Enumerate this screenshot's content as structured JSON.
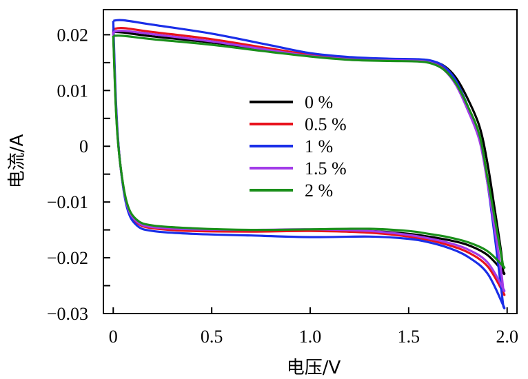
{
  "chart_data": {
    "type": "line",
    "title": "",
    "xlabel": "电压/V",
    "ylabel": "电流/A",
    "xlim": [
      -0.05,
      2.05
    ],
    "ylim": [
      -0.03,
      0.0245
    ],
    "x_ticks": [
      0,
      0.5,
      1.0,
      1.5,
      2.0
    ],
    "x_tick_labels": [
      "0",
      "0.5",
      "1.0",
      "1.5",
      "2.0"
    ],
    "y_ticks": [
      0.02,
      0.01,
      0,
      -0.01,
      -0.02,
      -0.03
    ],
    "y_tick_labels": [
      "0.02",
      "0.01",
      "0",
      "−0.01",
      "−0.02",
      "−0.03"
    ],
    "y_minor_ticks": [
      0.015,
      0.005,
      -0.005,
      -0.015,
      -0.025
    ],
    "grid": false,
    "legend_position": "center",
    "series": [
      {
        "name": "0 %",
        "color": "#000000",
        "upper": {
          "x": [
            0,
            0.05,
            0.2,
            0.5,
            0.8,
            1.0,
            1.2,
            1.4,
            1.55,
            1.62,
            1.68,
            1.74,
            1.8,
            1.86,
            1.9,
            1.94,
            1.97,
            1.98
          ],
          "y": [
            0.0205,
            0.0204,
            0.0197,
            0.0186,
            0.0172,
            0.0163,
            0.0157,
            0.0155,
            0.0155,
            0.0152,
            0.0144,
            0.0123,
            0.0085,
            0.0035,
            -0.003,
            -0.012,
            -0.019,
            -0.0225
          ]
        },
        "lower": {
          "x": [
            1.98,
            1.9,
            1.8,
            1.7,
            1.6,
            1.5,
            1.3,
            1.0,
            0.7,
            0.4,
            0.2,
            0.12,
            0.07,
            0.035,
            0.015,
            0
          ],
          "y": [
            -0.0225,
            -0.0195,
            -0.0177,
            -0.0168,
            -0.0162,
            -0.0157,
            -0.0152,
            -0.0151,
            -0.0151,
            -0.0149,
            -0.0145,
            -0.0135,
            -0.0105,
            -0.003,
            0.006,
            0.0205
          ]
        }
      },
      {
        "name": "0.5 %",
        "color": "#e8121c",
        "upper": {
          "x": [
            0,
            0.05,
            0.2,
            0.5,
            0.8,
            1.0,
            1.2,
            1.4,
            1.55,
            1.62,
            1.68,
            1.74,
            1.8,
            1.86,
            1.9,
            1.94,
            1.97,
            1.98
          ],
          "y": [
            0.021,
            0.0212,
            0.0205,
            0.0192,
            0.0175,
            0.0164,
            0.0158,
            0.0156,
            0.0155,
            0.0152,
            0.0141,
            0.0115,
            0.007,
            0.0015,
            -0.006,
            -0.0155,
            -0.0235,
            -0.0262
          ]
        },
        "lower": {
          "x": [
            1.98,
            1.9,
            1.8,
            1.7,
            1.6,
            1.5,
            1.3,
            1.0,
            0.7,
            0.4,
            0.2,
            0.12,
            0.07,
            0.035,
            0.015,
            0
          ],
          "y": [
            -0.0262,
            -0.0215,
            -0.019,
            -0.0177,
            -0.0168,
            -0.0162,
            -0.0155,
            -0.0152,
            -0.0153,
            -0.0152,
            -0.0147,
            -0.0137,
            -0.0107,
            -0.003,
            0.0065,
            0.021
          ]
        }
      },
      {
        "name": "1 %",
        "color": "#1a2ee8",
        "upper": {
          "x": [
            0,
            0.05,
            0.2,
            0.5,
            0.8,
            1.0,
            1.2,
            1.4,
            1.55,
            1.62,
            1.68,
            1.74,
            1.8,
            1.86,
            1.9,
            1.94,
            1.97,
            1.98
          ],
          "y": [
            0.0225,
            0.0226,
            0.0218,
            0.0202,
            0.0181,
            0.0167,
            0.016,
            0.0157,
            0.0156,
            0.0153,
            0.0143,
            0.0118,
            0.0072,
            0.0015,
            -0.0065,
            -0.017,
            -0.0255,
            -0.0285
          ]
        },
        "lower": {
          "x": [
            1.98,
            1.9,
            1.8,
            1.7,
            1.6,
            1.5,
            1.3,
            1.0,
            0.7,
            0.4,
            0.2,
            0.12,
            0.07,
            0.035,
            0.015,
            0
          ],
          "y": [
            -0.0285,
            -0.0228,
            -0.0198,
            -0.0182,
            -0.0172,
            -0.0166,
            -0.0162,
            -0.0163,
            -0.016,
            -0.0157,
            -0.0152,
            -0.0142,
            -0.011,
            -0.003,
            0.007,
            0.0225
          ]
        }
      },
      {
        "name": "1.5 %",
        "color": "#a23be8",
        "upper": {
          "x": [
            0,
            0.05,
            0.2,
            0.5,
            0.8,
            1.0,
            1.2,
            1.4,
            1.55,
            1.62,
            1.68,
            1.74,
            1.8,
            1.86,
            1.9,
            1.94,
            1.97,
            1.98
          ],
          "y": [
            0.0205,
            0.0207,
            0.0201,
            0.0188,
            0.0172,
            0.0162,
            0.0156,
            0.0154,
            0.0153,
            0.0149,
            0.0137,
            0.011,
            0.0065,
            0.001,
            -0.0065,
            -0.0155,
            -0.0225,
            -0.0255
          ]
        },
        "lower": {
          "x": [
            1.98,
            1.9,
            1.8,
            1.7,
            1.6,
            1.5,
            1.3,
            1.0,
            0.7,
            0.4,
            0.2,
            0.12,
            0.07,
            0.035,
            0.015,
            0
          ],
          "y": [
            -0.0255,
            -0.0208,
            -0.0185,
            -0.0173,
            -0.0165,
            -0.0159,
            -0.0152,
            -0.0149,
            -0.015,
            -0.0149,
            -0.0145,
            -0.0135,
            -0.0105,
            -0.003,
            0.006,
            0.0205
          ]
        }
      },
      {
        "name": "2 %",
        "color": "#1a8f1a",
        "upper": {
          "x": [
            0,
            0.05,
            0.2,
            0.5,
            0.8,
            1.0,
            1.2,
            1.4,
            1.55,
            1.62,
            1.68,
            1.74,
            1.8,
            1.86,
            1.9,
            1.94,
            1.97,
            1.98
          ],
          "y": [
            0.0198,
            0.0198,
            0.0192,
            0.0182,
            0.0169,
            0.0161,
            0.0155,
            0.0153,
            0.0152,
            0.0148,
            0.0137,
            0.0113,
            0.0072,
            0.002,
            -0.0055,
            -0.0135,
            -0.0195,
            -0.0215
          ]
        },
        "lower": {
          "x": [
            1.98,
            1.9,
            1.8,
            1.7,
            1.6,
            1.5,
            1.3,
            1.0,
            0.7,
            0.4,
            0.2,
            0.12,
            0.07,
            0.035,
            0.015,
            0
          ],
          "y": [
            -0.0215,
            -0.0188,
            -0.0172,
            -0.0163,
            -0.0157,
            -0.0152,
            -0.0148,
            -0.0149,
            -0.015,
            -0.0147,
            -0.0142,
            -0.0132,
            -0.0102,
            -0.003,
            0.0055,
            0.0198
          ]
        }
      }
    ]
  }
}
